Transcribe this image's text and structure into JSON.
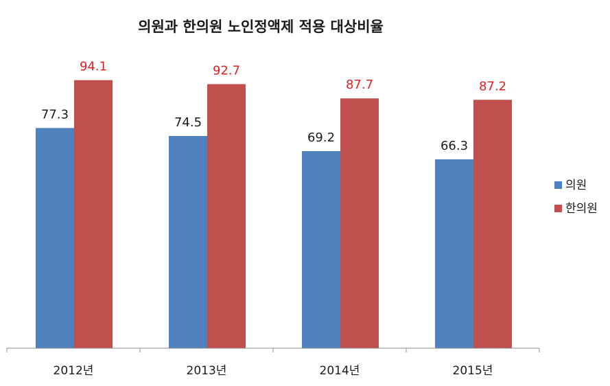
{
  "chart_data": {
    "type": "bar",
    "title": "의원과 한의원 노인정액제 적용 대상비율",
    "categories": [
      "2012년",
      "2013년",
      "2014년",
      "2015년"
    ],
    "series": [
      {
        "name": "의원",
        "values": [
          77.3,
          74.5,
          69.2,
          66.3
        ],
        "color": "#4f81bd",
        "label_color": "#1a1a1a"
      },
      {
        "name": "한의원",
        "values": [
          94.1,
          92.7,
          87.7,
          87.2
        ],
        "color": "#c0504d",
        "label_color": "#e02020"
      }
    ],
    "ylim": [
      0,
      100
    ],
    "grid": false,
    "legend": "right",
    "xlabel": "",
    "ylabel": ""
  }
}
